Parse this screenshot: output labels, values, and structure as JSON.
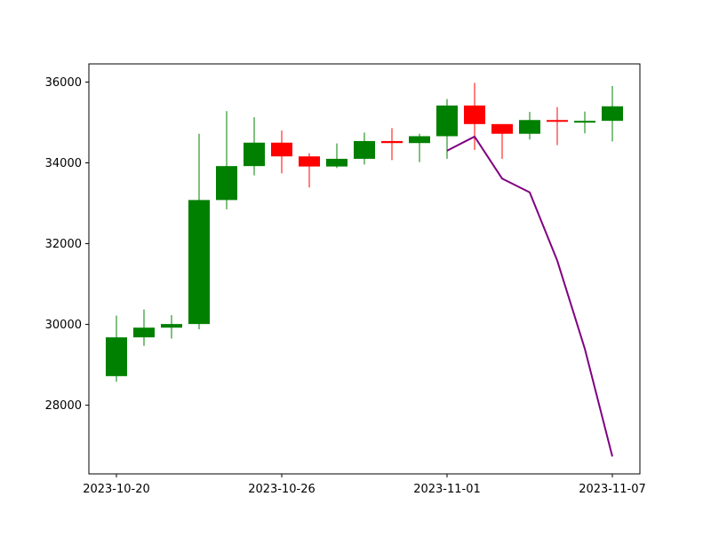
{
  "chart_data": {
    "type": "candlestick",
    "x_ticks": [
      "2023-10-20",
      "2023-10-26",
      "2023-11-01",
      "2023-11-07"
    ],
    "y_ticks": [
      28000,
      30000,
      32000,
      34000,
      36000
    ],
    "xlim": [
      "2023-10-19",
      "2023-11-08"
    ],
    "ylim": [
      26300,
      36450
    ],
    "grid": false,
    "colors": {
      "up": "#008000",
      "down": "#ff0000",
      "line": "#800080",
      "axis": "#000000"
    },
    "candles": [
      {
        "date": "2023-10-20",
        "open": 28720,
        "high": 30220,
        "low": 28580,
        "close": 29680
      },
      {
        "date": "2023-10-21",
        "open": 29680,
        "high": 30370,
        "low": 29470,
        "close": 29920
      },
      {
        "date": "2023-10-22",
        "open": 29920,
        "high": 30230,
        "low": 29650,
        "close": 30010
      },
      {
        "date": "2023-10-23",
        "open": 30010,
        "high": 34720,
        "low": 29880,
        "close": 33080
      },
      {
        "date": "2023-10-24",
        "open": 33080,
        "high": 35280,
        "low": 32850,
        "close": 33920
      },
      {
        "date": "2023-10-25",
        "open": 33920,
        "high": 35130,
        "low": 33690,
        "close": 34500
      },
      {
        "date": "2023-10-26",
        "open": 34500,
        "high": 34800,
        "low": 33740,
        "close": 34160
      },
      {
        "date": "2023-10-27",
        "open": 34160,
        "high": 34240,
        "low": 33390,
        "close": 33910
      },
      {
        "date": "2023-10-28",
        "open": 33910,
        "high": 34480,
        "low": 33870,
        "close": 34100
      },
      {
        "date": "2023-10-29",
        "open": 34100,
        "high": 34750,
        "low": 33960,
        "close": 34540
      },
      {
        "date": "2023-10-30",
        "open": 34540,
        "high": 34860,
        "low": 34070,
        "close": 34490
      },
      {
        "date": "2023-10-31",
        "open": 34490,
        "high": 34720,
        "low": 34020,
        "close": 34660
      },
      {
        "date": "2023-11-01",
        "open": 34660,
        "high": 35580,
        "low": 34100,
        "close": 35420
      },
      {
        "date": "2023-11-02",
        "open": 35420,
        "high": 35980,
        "low": 34320,
        "close": 34960
      },
      {
        "date": "2023-11-03",
        "open": 34960,
        "high": 34960,
        "low": 34100,
        "close": 34720
      },
      {
        "date": "2023-11-04",
        "open": 34720,
        "high": 35260,
        "low": 34580,
        "close": 35060
      },
      {
        "date": "2023-11-05",
        "open": 35060,
        "high": 35380,
        "low": 34440,
        "close": 35030
      },
      {
        "date": "2023-11-06",
        "open": 35030,
        "high": 35270,
        "low": 34730,
        "close": 35040
      },
      {
        "date": "2023-11-07",
        "open": 35040,
        "high": 35900,
        "low": 34530,
        "close": 35400
      }
    ],
    "line_series": {
      "points": [
        {
          "date": "2023-11-01",
          "value": 34300
        },
        {
          "date": "2023-11-02",
          "value": 34650
        },
        {
          "date": "2023-11-03",
          "value": 33610
        },
        {
          "date": "2023-11-04",
          "value": 33270
        },
        {
          "date": "2023-11-05",
          "value": 31580
        },
        {
          "date": "2023-11-06",
          "value": 29400
        },
        {
          "date": "2023-11-07",
          "value": 26730
        }
      ]
    }
  }
}
